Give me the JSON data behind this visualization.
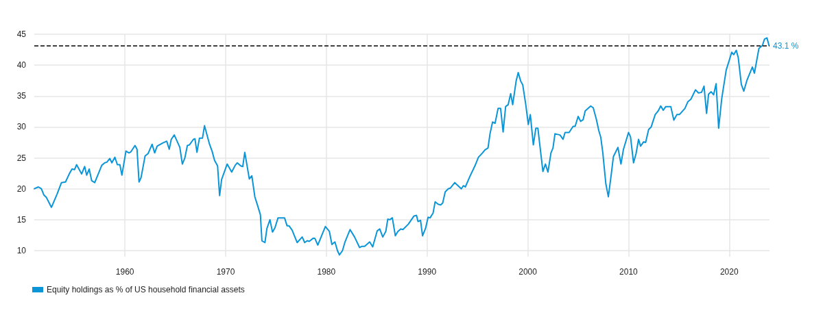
{
  "chart_data": {
    "type": "line",
    "x": [
      1951.0,
      1951.4,
      1951.7,
      1951.95,
      1952.2,
      1952.7,
      1953.25,
      1953.7,
      1954.1,
      1954.5,
      1954.75,
      1955.0,
      1955.2,
      1955.7,
      1956.0,
      1956.2,
      1956.45,
      1956.7,
      1957.0,
      1957.35,
      1957.7,
      1958.0,
      1958.2,
      1958.5,
      1958.7,
      1959.0,
      1959.25,
      1959.5,
      1959.7,
      1960.1,
      1960.4,
      1960.6,
      1961.0,
      1961.2,
      1961.4,
      1961.6,
      1962.0,
      1962.3,
      1962.7,
      1962.95,
      1963.2,
      1963.75,
      1964.15,
      1964.4,
      1964.6,
      1964.9,
      1965.45,
      1965.7,
      1965.95,
      1966.2,
      1966.4,
      1966.8,
      1966.95,
      1967.15,
      1967.4,
      1967.7,
      1967.9,
      1968.4,
      1968.65,
      1968.9,
      1969.2,
      1969.4,
      1969.6,
      1970.15,
      1970.6,
      1970.95,
      1971.15,
      1971.5,
      1971.7,
      1971.9,
      1972.35,
      1972.6,
      1972.9,
      1973.15,
      1973.45,
      1973.6,
      1973.9,
      1974.1,
      1974.4,
      1974.65,
      1974.9,
      1975.2,
      1975.85,
      1976.1,
      1976.3,
      1976.6,
      1977.1,
      1977.6,
      1977.85,
      1978.1,
      1978.3,
      1978.7,
      1978.85,
      1979.15,
      1979.9,
      1980.3,
      1980.55,
      1980.85,
      1981.1,
      1981.3,
      1981.6,
      1981.85,
      1982.35,
      1982.8,
      1983.3,
      1983.55,
      1983.8,
      1984.3,
      1984.6,
      1985.05,
      1985.3,
      1985.6,
      1985.9,
      1986.1,
      1986.3,
      1986.55,
      1986.85,
      1987.1,
      1987.4,
      1987.6,
      1988.15,
      1988.7,
      1988.95,
      1989.1,
      1989.35,
      1989.55,
      1989.85,
      1990.1,
      1990.3,
      1990.6,
      1990.8,
      1991.1,
      1991.35,
      1991.55,
      1991.8,
      1992.1,
      1992.3,
      1992.75,
      1993.4,
      1993.6,
      1993.8,
      1994.25,
      1994.75,
      1995.1,
      1995.5,
      1995.75,
      1996.05,
      1996.25,
      1996.5,
      1996.75,
      1997.05,
      1997.3,
      1997.55,
      1997.8,
      1998.05,
      1998.3,
      1998.5,
      1998.85,
      1999.05,
      1999.3,
      1999.5,
      1999.8,
      2000.05,
      2000.25,
      2000.55,
      2000.8,
      2001.0,
      2001.5,
      2001.75,
      2002.0,
      2002.3,
      2002.5,
      2002.7,
      2003.2,
      2003.5,
      2003.7,
      2004.1,
      2004.5,
      2004.7,
      2005.0,
      2005.25,
      2005.5,
      2005.7,
      2006.25,
      2006.5,
      2006.8,
      2007.05,
      2007.25,
      2007.45,
      2007.75,
      2008.0,
      2008.3,
      2008.5,
      2008.95,
      2009.25,
      2009.5,
      2010.0,
      2010.2,
      2010.5,
      2010.75,
      2011.0,
      2011.2,
      2011.5,
      2011.7,
      2012.0,
      2012.25,
      2012.65,
      2012.95,
      2013.2,
      2013.45,
      2013.7,
      2014.2,
      2014.5,
      2014.8,
      2015.05,
      2015.6,
      2015.9,
      2016.2,
      2016.65,
      2016.95,
      2017.25,
      2017.5,
      2017.75,
      2017.95,
      2018.2,
      2018.45,
      2018.7,
      2018.95,
      2019.25,
      2019.4,
      2019.7,
      2020.25,
      2020.45,
      2020.7,
      2020.9,
      2021.2,
      2021.45,
      2021.75,
      2022.3,
      2022.5,
      2022.95,
      2023.3,
      2023.5,
      2023.75,
      2023.95
    ],
    "series": [
      {
        "name": "Equity holdings as % of US household financial assets",
        "color": "#0a95d8",
        "values": [
          20.0,
          20.3,
          20.0,
          19.0,
          18.6,
          17.0,
          19.1,
          21.0,
          21.1,
          22.5,
          23.2,
          23.1,
          23.9,
          22.4,
          23.6,
          22.2,
          23.2,
          21.3,
          21.0,
          22.4,
          23.8,
          24.2,
          24.3,
          24.9,
          24.2,
          25.1,
          23.9,
          23.9,
          22.2,
          26.1,
          25.8,
          26.0,
          27.0,
          26.4,
          21.1,
          21.8,
          25.3,
          25.7,
          27.2,
          25.8,
          26.9,
          27.4,
          27.7,
          26.4,
          28.0,
          28.7,
          26.7,
          24.0,
          25.0,
          27.0,
          27.1,
          28.0,
          28.1,
          25.9,
          28.2,
          28.2,
          30.2,
          27.2,
          26.1,
          24.6,
          23.7,
          18.9,
          21.5,
          24.0,
          22.7,
          23.8,
          24.2,
          23.7,
          23.6,
          25.9,
          21.6,
          22.1,
          18.7,
          17.4,
          15.8,
          11.6,
          11.3,
          13.6,
          15.0,
          13.0,
          13.7,
          15.3,
          15.3,
          14.0,
          14.0,
          13.3,
          11.3,
          12.2,
          11.3,
          11.6,
          11.5,
          12.0,
          12.0,
          10.9,
          13.9,
          13.1,
          11.0,
          11.4,
          10.0,
          9.3,
          10.0,
          11.4,
          13.4,
          12.2,
          10.5,
          10.7,
          10.7,
          11.4,
          10.6,
          13.2,
          13.5,
          12.2,
          13.1,
          15.1,
          15.0,
          15.3,
          12.4,
          13.1,
          13.5,
          13.4,
          14.3,
          15.6,
          15.7,
          14.7,
          14.9,
          12.4,
          13.6,
          15.4,
          15.3,
          16.1,
          17.9,
          17.5,
          17.4,
          17.7,
          19.5,
          20.0,
          20.1,
          21.0,
          20.0,
          20.5,
          20.3,
          22.0,
          23.7,
          25.1,
          25.8,
          26.3,
          26.6,
          28.9,
          30.8,
          30.6,
          33.0,
          33.0,
          29.2,
          33.3,
          33.6,
          35.4,
          33.6,
          37.5,
          38.8,
          37.4,
          36.8,
          33.6,
          30.4,
          32.0,
          27.1,
          29.8,
          29.8,
          22.8,
          24.0,
          22.7,
          25.8,
          26.6,
          28.9,
          28.7,
          28.0,
          29.1,
          29.1,
          30.1,
          30.1,
          31.7,
          30.9,
          31.2,
          32.6,
          33.4,
          33.1,
          31.3,
          29.4,
          28.3,
          25.8,
          20.8,
          18.7,
          22.5,
          25.2,
          26.7,
          24.0,
          26.4,
          29.1,
          28.4,
          24.2,
          25.7,
          28.0,
          26.9,
          27.6,
          27.5,
          29.6,
          30.0,
          32.0,
          32.6,
          33.4,
          32.7,
          33.3,
          33.3,
          31.1,
          32.0,
          32.0,
          33.0,
          34.1,
          34.5,
          36.0,
          35.5,
          35.6,
          36.6,
          32.2,
          35.3,
          35.7,
          35.2,
          37.0,
          29.8,
          34.5,
          36.1,
          39.2,
          42.1,
          41.7,
          42.4,
          41.2,
          36.9,
          35.8,
          37.5,
          39.7,
          38.7,
          42.7,
          43.2,
          44.2,
          44.4,
          43.2
        ]
      }
    ],
    "xlim": [
      1951,
      2024
    ],
    "xticks": [
      1960,
      1970,
      1980,
      1990,
      2000,
      2010,
      2020
    ],
    "ylim": [
      9,
      45
    ],
    "yticks": [
      10,
      15,
      20,
      25,
      30,
      35,
      40,
      45
    ],
    "ref_lines": [
      {
        "axis": "y",
        "value": 43.1,
        "label": "43.1 %",
        "color": "#000000",
        "line_style": "dashed"
      }
    ],
    "grid": true,
    "legend": "bottom left",
    "marker": "none",
    "line_style": "solid"
  }
}
